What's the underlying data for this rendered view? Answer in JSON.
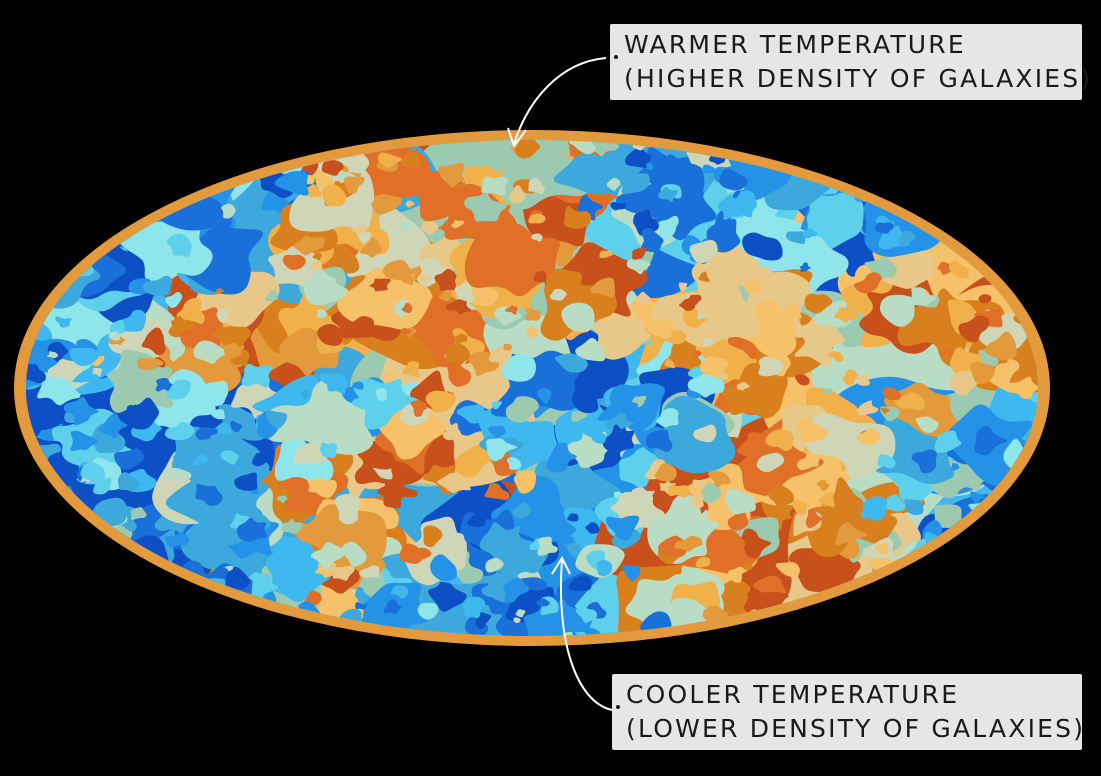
{
  "labels": {
    "warm": {
      "line1": "WARMER TEMPERATURE",
      "line2": "(HIGHER DENSITY OF GALAXIES)"
    },
    "cool": {
      "line1": "COOLER TEMPERATURE",
      "line2": "(LOWER DENSITY OF GALAXIES)"
    }
  },
  "colors": {
    "background": "#000000",
    "label_bg": "#e6e6e6",
    "rim": "#e39a3c",
    "warm": [
      "#e39a3c",
      "#f0b04a",
      "#f5c26a",
      "#e8c888",
      "#d9801e",
      "#c8501a",
      "#e07028"
    ],
    "neutral": [
      "#cfd6b8",
      "#b8dcc4",
      "#9ccab0"
    ],
    "cool": [
      "#8ee6ea",
      "#5fd0ec",
      "#3eb8ee",
      "#2492e6",
      "#1870d8",
      "#0d4fc4",
      "#3da8dc"
    ]
  },
  "icons": [
    "warm-arrow-icon",
    "cool-arrow-icon",
    "cmb-sky-map-icon"
  ]
}
